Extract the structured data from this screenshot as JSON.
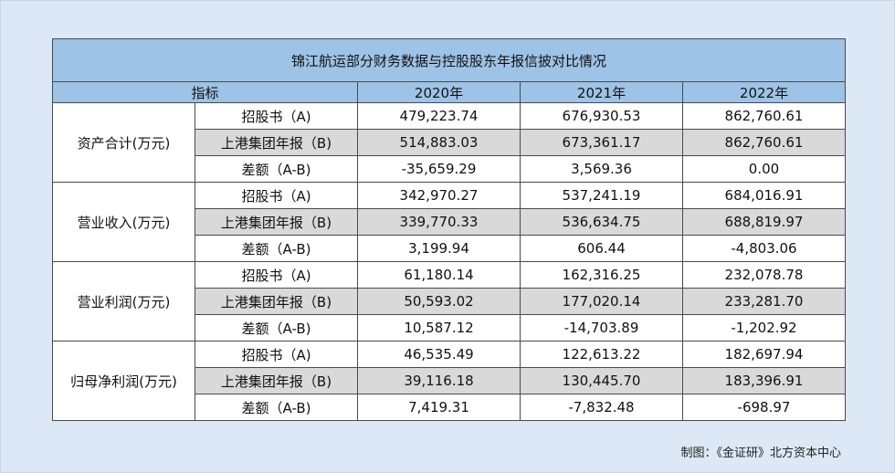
{
  "table": {
    "title": "锦江航运部分财务数据与控股股东年报信披对比情况",
    "header": {
      "label": "指标",
      "years": [
        "2020年",
        "2021年",
        "2022年"
      ]
    },
    "groups": [
      {
        "metric": "资产合计(万元)",
        "rows": [
          {
            "label": "招股书（A)",
            "values": [
              "479,223.74",
              "676,930.53",
              "862,760.61"
            ]
          },
          {
            "label": "上港集团年报（B)",
            "values": [
              "514,883.03",
              "673,361.17",
              "862,760.61"
            ]
          },
          {
            "label": "差额（A-B)",
            "values": [
              "-35,659.29",
              "3,569.36",
              "0.00"
            ]
          }
        ]
      },
      {
        "metric": "营业收入(万元)",
        "rows": [
          {
            "label": "招股书（A)",
            "values": [
              "342,970.27",
              "537,241.19",
              "684,016.91"
            ]
          },
          {
            "label": "上港集团年报（B)",
            "values": [
              "339,770.33",
              "536,634.75",
              "688,819.97"
            ]
          },
          {
            "label": "差额（A-B)",
            "values": [
              "3,199.94",
              "606.44",
              "-4,803.06"
            ]
          }
        ]
      },
      {
        "metric": "营业利润(万元)",
        "rows": [
          {
            "label": "招股书（A)",
            "values": [
              "61,180.14",
              "162,316.25",
              "232,078.78"
            ]
          },
          {
            "label": "上港集团年报（B)",
            "values": [
              "50,593.02",
              "177,020.14",
              "233,281.70"
            ]
          },
          {
            "label": "差额（A-B)",
            "values": [
              "10,587.12",
              "-14,703.89",
              "-1,202.92"
            ]
          }
        ]
      },
      {
        "metric": "归母净利润(万元)",
        "rows": [
          {
            "label": "招股书（A)",
            "values": [
              "46,535.49",
              "122,613.22",
              "182,697.94"
            ]
          },
          {
            "label": "上港集团年报（B)",
            "values": [
              "39,116.18",
              "130,445.70",
              "183,396.91"
            ]
          },
          {
            "label": "差额（A-B)",
            "values": [
              "7,419.31",
              "-7,832.48",
              "-698.97"
            ]
          }
        ]
      }
    ]
  },
  "source": "制图：《金证研》北方资本中心"
}
